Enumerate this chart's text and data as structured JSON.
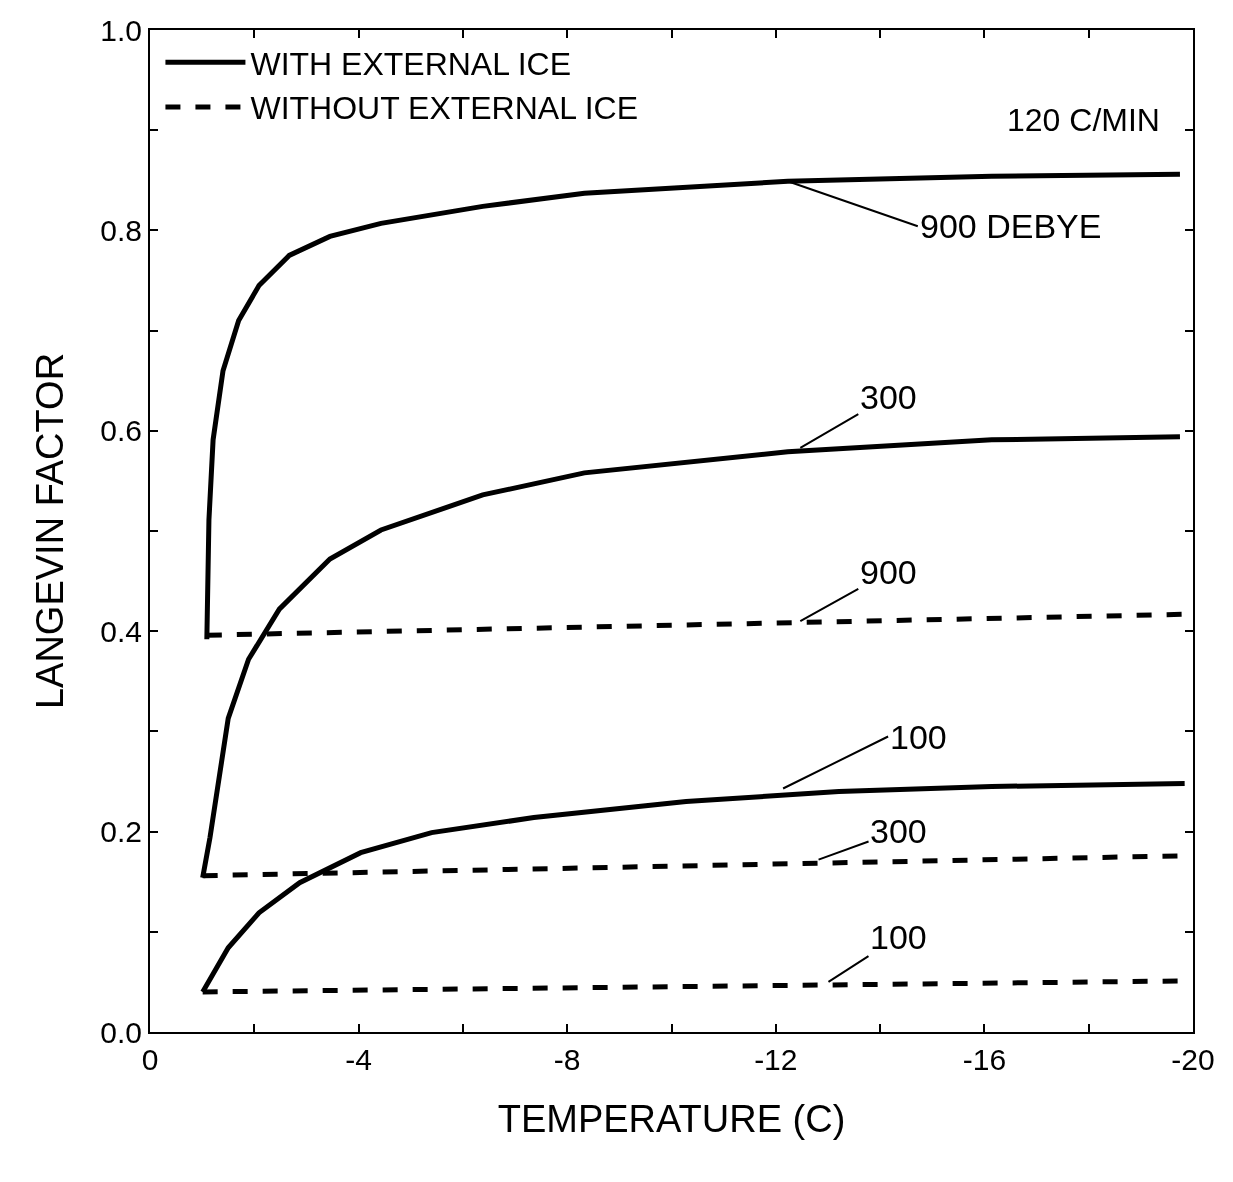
{
  "chart_data": {
    "type": "line",
    "xlabel": "TEMPERATURE (C)",
    "ylabel": "LANGEVIN FACTOR",
    "xlim": [
      0,
      -20
    ],
    "ylim": [
      0,
      1.0
    ],
    "xticks": [
      0,
      {
        "value": -2,
        "label": null
      },
      -4,
      {
        "value": -6,
        "label": null
      },
      -8,
      {
        "value": -10,
        "label": null
      },
      -12,
      {
        "value": -14,
        "label": null
      },
      -16,
      {
        "value": -18,
        "label": null
      },
      -20
    ],
    "yticks": [
      {
        "value": 0,
        "label": "0.0"
      },
      {
        "value": 0.1,
        "label": null
      },
      0.2,
      {
        "value": 0.3,
        "label": null
      },
      0.4,
      {
        "value": 0.5,
        "label": null
      },
      0.6,
      {
        "value": 0.7,
        "label": null
      },
      0.8,
      {
        "value": 0.9,
        "label": null
      },
      {
        "value": 1.0,
        "label": "1.0"
      }
    ],
    "legend": "top left",
    "marker": "none",
    "series": [
      {
        "name": "WITH EXTERNAL ICE",
        "color": "#000000",
        "line_style": "solid",
        "x": [
          -1.09,
          -1.13,
          -1.21,
          -1.4,
          -1.7,
          -2.09,
          -2.67,
          -3.45,
          -4.43,
          -6.38,
          -8.33,
          -12.23,
          -16.14,
          -19.75
        ],
        "values": [
          0.392,
          0.511,
          0.591,
          0.66,
          0.71,
          0.745,
          0.775,
          0.794,
          0.807,
          0.824,
          0.837,
          0.849,
          0.854,
          0.856
        ]
      },
      {
        "color": "#000000",
        "line_style": "solid",
        "x": [
          -1.01,
          -1.15,
          -1.5,
          -1.89,
          -2.48,
          -3.45,
          -4.43,
          -6.38,
          -8.33,
          -12.23,
          -16.14,
          -19.75
        ],
        "values": [
          0.154,
          0.194,
          0.313,
          0.372,
          0.422,
          0.472,
          0.501,
          0.536,
          0.558,
          0.579,
          0.591,
          0.594
        ]
      },
      {
        "color": "#000000",
        "line_style": "solid",
        "x": [
          -1.01,
          -1.5,
          -2.09,
          -2.87,
          -4.04,
          -5.4,
          -7.36,
          -10.28,
          -13.21,
          -16.14,
          -19.84
        ],
        "values": [
          0.04,
          0.084,
          0.119,
          0.149,
          0.179,
          0.199,
          0.214,
          0.23,
          0.24,
          0.245,
          0.248
        ]
      },
      {
        "name": "WITHOUT EXTERNAL ICE",
        "color": "#000000",
        "line_style": "dashed",
        "x": [
          -1.09,
          -19.94
        ],
        "values": [
          0.396,
          0.417
        ]
      },
      {
        "color": "#000000",
        "line_style": "dashed",
        "x": [
          -1.01,
          -19.94
        ],
        "values": [
          0.156,
          0.176
        ]
      },
      {
        "color": "#000000",
        "line_style": "dashed",
        "x": [
          -1.01,
          -19.94
        ],
        "values": [
          0.04,
          0.051
        ]
      }
    ],
    "annotations": [
      "120 C/MIN",
      {
        "text": "900 DEBYE",
        "x": -12.23,
        "y": 0.849
      },
      {
        "text": "300",
        "x": -12.47,
        "y": 0.583
      },
      {
        "text": "900",
        "x": -12.47,
        "y": 0.41
      },
      {
        "text": "100",
        "x": -12.14,
        "y": 0.243
      },
      {
        "text": "300",
        "x": -12.82,
        "y": 0.172
      },
      {
        "text": "100",
        "x": -13.01,
        "y": 0.05
      }
    ]
  }
}
